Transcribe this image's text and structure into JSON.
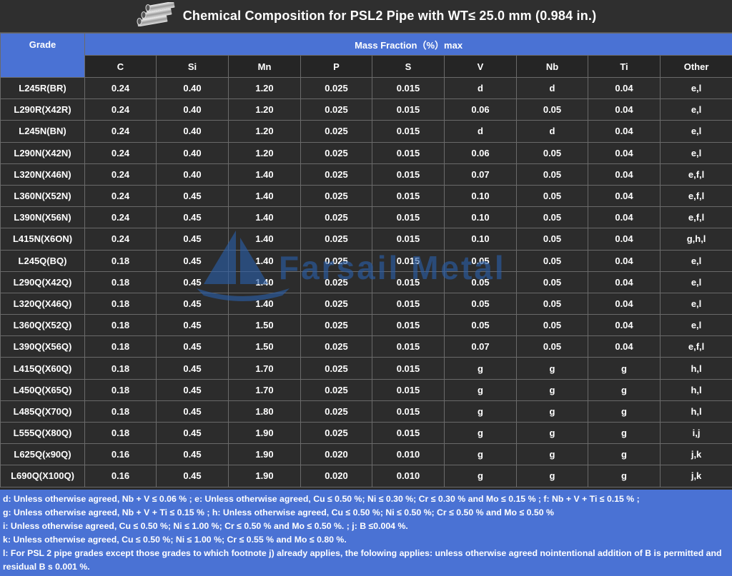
{
  "title": "Chemical Composition for PSL2 Pipe with WT≤ 25.0 mm (0.984 in.)",
  "watermark_text": "Farsail Metal",
  "table": {
    "grade_header": "Grade",
    "group_header": "Mass Fraction（%）max",
    "columns": [
      "C",
      "Si",
      "Mn",
      "P",
      "S",
      "V",
      "Nb",
      "Ti",
      "Other"
    ],
    "rows": [
      [
        "L245R(BR)",
        "0.24",
        "0.40",
        "1.20",
        "0.025",
        "0.015",
        "d",
        "d",
        "0.04",
        "e,l"
      ],
      [
        "L290R(X42R)",
        "0.24",
        "0.40",
        "1.20",
        "0.025",
        "0.015",
        "0.06",
        "0.05",
        "0.04",
        "e,l"
      ],
      [
        "L245N(BN)",
        "0.24",
        "0.40",
        "1.20",
        "0.025",
        "0.015",
        "d",
        "d",
        "0.04",
        "e,l"
      ],
      [
        "L290N(X42N)",
        "0.24",
        "0.40",
        "1.20",
        "0.025",
        "0.015",
        "0.06",
        "0.05",
        "0.04",
        "e,l"
      ],
      [
        "L320N(X46N)",
        "0.24",
        "0.40",
        "1.40",
        "0.025",
        "0.015",
        "0.07",
        "0.05",
        "0.04",
        "e,f,l"
      ],
      [
        "L360N(X52N)",
        "0.24",
        "0.45",
        "1.40",
        "0.025",
        "0.015",
        "0.10",
        "0.05",
        "0.04",
        "e,f,l"
      ],
      [
        "L390N(X56N)",
        "0.24",
        "0.45",
        "1.40",
        "0.025",
        "0.015",
        "0.10",
        "0.05",
        "0.04",
        "e,f,l"
      ],
      [
        "L415N(X6ON)",
        "0.24",
        "0.45",
        "1.40",
        "0.025",
        "0.015",
        "0.10",
        "0.05",
        "0.04",
        "g,h,l"
      ],
      [
        "L245Q(BQ)",
        "0.18",
        "0.45",
        "1.40",
        "0.025",
        "0.015",
        "0.05",
        "0.05",
        "0.04",
        "e,l"
      ],
      [
        "L290Q(X42Q)",
        "0.18",
        "0.45",
        "1.40",
        "0.025",
        "0.015",
        "0.05",
        "0.05",
        "0.04",
        "e,l"
      ],
      [
        "L320Q(X46Q)",
        "0.18",
        "0.45",
        "1.40",
        "0.025",
        "0.015",
        "0.05",
        "0.05",
        "0.04",
        "e,l"
      ],
      [
        "L360Q(X52Q)",
        "0.18",
        "0.45",
        "1.50",
        "0.025",
        "0.015",
        "0.05",
        "0.05",
        "0.04",
        "e,l"
      ],
      [
        "L390Q(X56Q)",
        "0.18",
        "0.45",
        "1.50",
        "0.025",
        "0.015",
        "0.07",
        "0.05",
        "0.04",
        "e,f,l"
      ],
      [
        "L415Q(X60Q)",
        "0.18",
        "0.45",
        "1.70",
        "0.025",
        "0.015",
        "g",
        "g",
        "g",
        "h,l"
      ],
      [
        "L450Q(X65Q)",
        "0.18",
        "0.45",
        "1.70",
        "0.025",
        "0.015",
        "g",
        "g",
        "g",
        "h,l"
      ],
      [
        "L485Q(X70Q)",
        "0.18",
        "0.45",
        "1.80",
        "0.025",
        "0.015",
        "g",
        "g",
        "g",
        "h,l"
      ],
      [
        "L555Q(X80Q)",
        "0.18",
        "0.45",
        "1.90",
        "0.025",
        "0.015",
        "g",
        "g",
        "g",
        "i,j"
      ],
      [
        "L625Q(x90Q)",
        "0.16",
        "0.45",
        "1.90",
        "0.020",
        "0.010",
        "g",
        "g",
        "g",
        "j,k"
      ],
      [
        "L690Q(X100Q)",
        "0.16",
        "0.45",
        "1.90",
        "0.020",
        "0.010",
        "g",
        "g",
        "g",
        "j,k"
      ]
    ]
  },
  "notes": [
    "d: Unless otherwise agreed, Nb + V ≤ 0.06 % ; e: Unless otherwise agreed, Cu ≤ 0.50 %; Ni ≤ 0.30 %; Cr ≤ 0.30 % and Mo ≤ 0.15 % ; f: Nb + V + Ti ≤ 0.15 % ;",
    "g: Unless otherwise agreed, Nb + V + Ti ≤ 0.15 % ; h: Unless otherwise agreed, Cu ≤ 0.50 %; Ni ≤ 0.50 %; Cr ≤ 0.50 % and Mo ≤ 0.50 %",
    "i: Unless otherwise agreed, Cu ≤ 0.50 %; Ni ≤ 1.00 %; Cr ≤ 0.50 % and Mo ≤ 0.50 %. ; j: B ≤0.004 %.",
    "k: Unless otherwise agreed, Cu ≤ 0.50 %; Ni ≤ 1.00 %; Cr ≤ 0.55 % and Mo ≤ 0.80 %.",
    "l: For PSL 2 pipe grades except those grades to which footnote j) already applies, the folowing applies: unless otherwise agreed nointentional addition of B is permitted and residual B s 0.001 %."
  ],
  "colors": {
    "header_blue": "#4a72d4",
    "cell_dark": "#2c2c2c",
    "watermark_blue": "#2a5ea8"
  },
  "icons": [
    "steel-pipes-icon",
    "sailboat-logo-icon"
  ]
}
